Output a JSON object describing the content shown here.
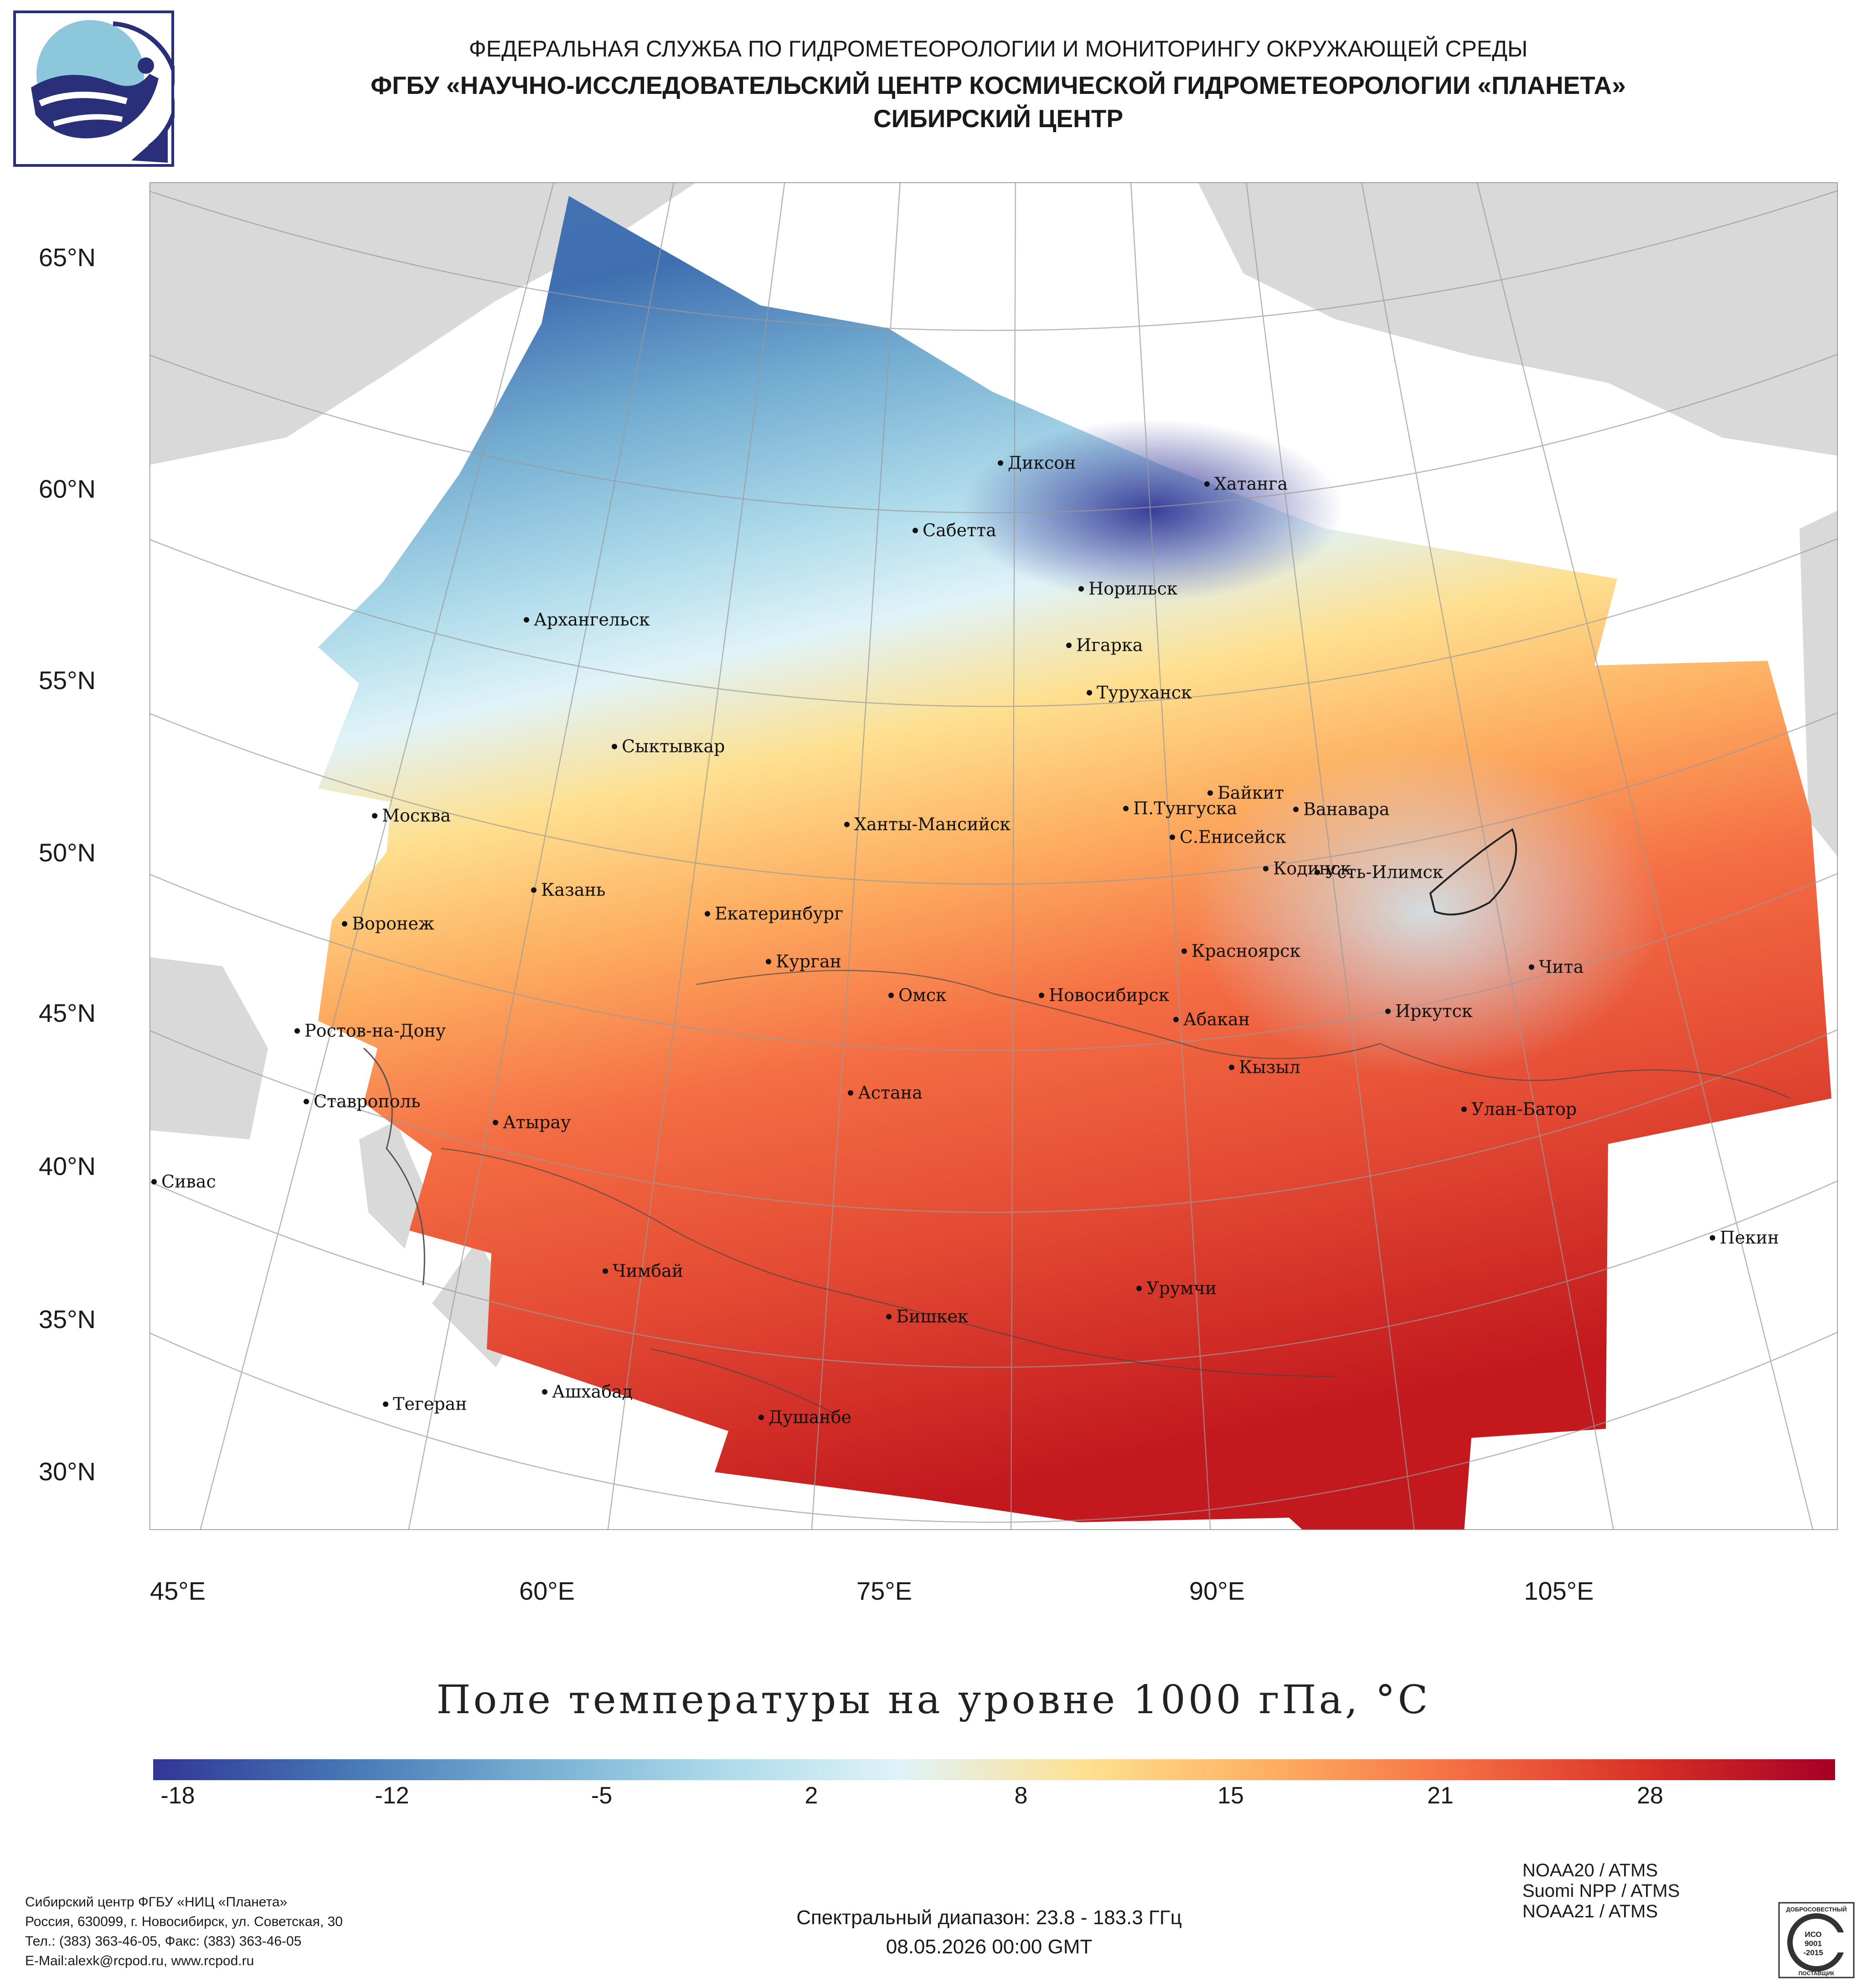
{
  "header": {
    "line1": "ФЕДЕРАЛЬНАЯ СЛУЖБА ПО ГИДРОМЕТЕОРОЛОГИИ И МОНИТОРИНГУ ОКРУЖАЮЩЕЙ СРЕДЫ",
    "line2": "ФГБУ «НАУЧНО-ИССЛЕДОВАТЕЛЬСКИЙ ЦЕНТР КОСМИЧЕСКОЙ ГИДРОМЕТЕОРОЛОГИИ «ПЛАНЕТА»",
    "line3": "СИБИРСКИЙ ЦЕНТР"
  },
  "axes": {
    "lat_labels": [
      "65°N",
      "60°N",
      "55°N",
      "50°N",
      "45°N",
      "40°N",
      "35°N",
      "30°N"
    ],
    "lon_labels": [
      "45°E",
      "60°E",
      "75°E",
      "90°E",
      "105°E"
    ]
  },
  "cities": [
    {
      "name": "Диксон"
    },
    {
      "name": "Хатанга"
    },
    {
      "name": "Сабетта"
    },
    {
      "name": "Норильск"
    },
    {
      "name": "Архангельск"
    },
    {
      "name": "Игарка"
    },
    {
      "name": "Туруханск"
    },
    {
      "name": "Сыктывкар"
    },
    {
      "name": "Байкит"
    },
    {
      "name": "Москва"
    },
    {
      "name": "П.Тунгуска"
    },
    {
      "name": "Ванавара"
    },
    {
      "name": "Ханты-Мансийск"
    },
    {
      "name": "С.Енисейск"
    },
    {
      "name": "Кодинск"
    },
    {
      "name": "Усть-Илимск"
    },
    {
      "name": "Казань"
    },
    {
      "name": "Екатеринбург"
    },
    {
      "name": "Воронеж"
    },
    {
      "name": "Красноярск"
    },
    {
      "name": "Курган"
    },
    {
      "name": "Чита"
    },
    {
      "name": "Омск"
    },
    {
      "name": "Новосибирск"
    },
    {
      "name": "Иркутск"
    },
    {
      "name": "Абакан"
    },
    {
      "name": "Ростов-на-Дону"
    },
    {
      "name": "Кызыл"
    },
    {
      "name": "Астана"
    },
    {
      "name": "Ставрополь"
    },
    {
      "name": "Улан-Батор"
    },
    {
      "name": "Атырау"
    },
    {
      "name": "Сивас"
    },
    {
      "name": "Пекин"
    },
    {
      "name": "Чимбай"
    },
    {
      "name": "Урумчи"
    },
    {
      "name": "Бишкек"
    },
    {
      "name": "Ашхабад"
    },
    {
      "name": "Тегеран"
    },
    {
      "name": "Душанбе"
    }
  ],
  "title": "Поле температуры на уровне 1000 гПа, °C",
  "colorbar": {
    "labels": [
      "-18",
      "-12",
      "-5",
      "2",
      "8",
      "15",
      "21",
      "28"
    ],
    "colors": [
      "#313695",
      "#4575b4",
      "#74add1",
      "#abd9e9",
      "#e0f3f8",
      "#fee090",
      "#fdae61",
      "#f46d43",
      "#d73027",
      "#a50026"
    ]
  },
  "footer": {
    "org_lines": [
      "Сибирский центр ФГБУ «НИЦ «Планета»",
      "Россия, 630099, г. Новосибирск, ул. Советская, 30",
      "Тел.: (383) 363-46-05, Факс: (383) 363-46-05",
      "E-Mail:alexk@rcpod.ru, www.rcpod.ru"
    ],
    "spectral": "Спектральный диапазон: 23.8 - 183.3 ГГц",
    "datetime": "08.05.2026 00:00 GMT",
    "instruments": [
      "NOAA20 / ATMS",
      "Suomi NPP / ATMS",
      "NOAA21 / ATMS"
    ],
    "cert_lines": [
      "ДОБРОСОВЕСТНЫЙ",
      "ИСО",
      "9001",
      "-2015",
      "ПОСТАВЩИК"
    ]
  }
}
